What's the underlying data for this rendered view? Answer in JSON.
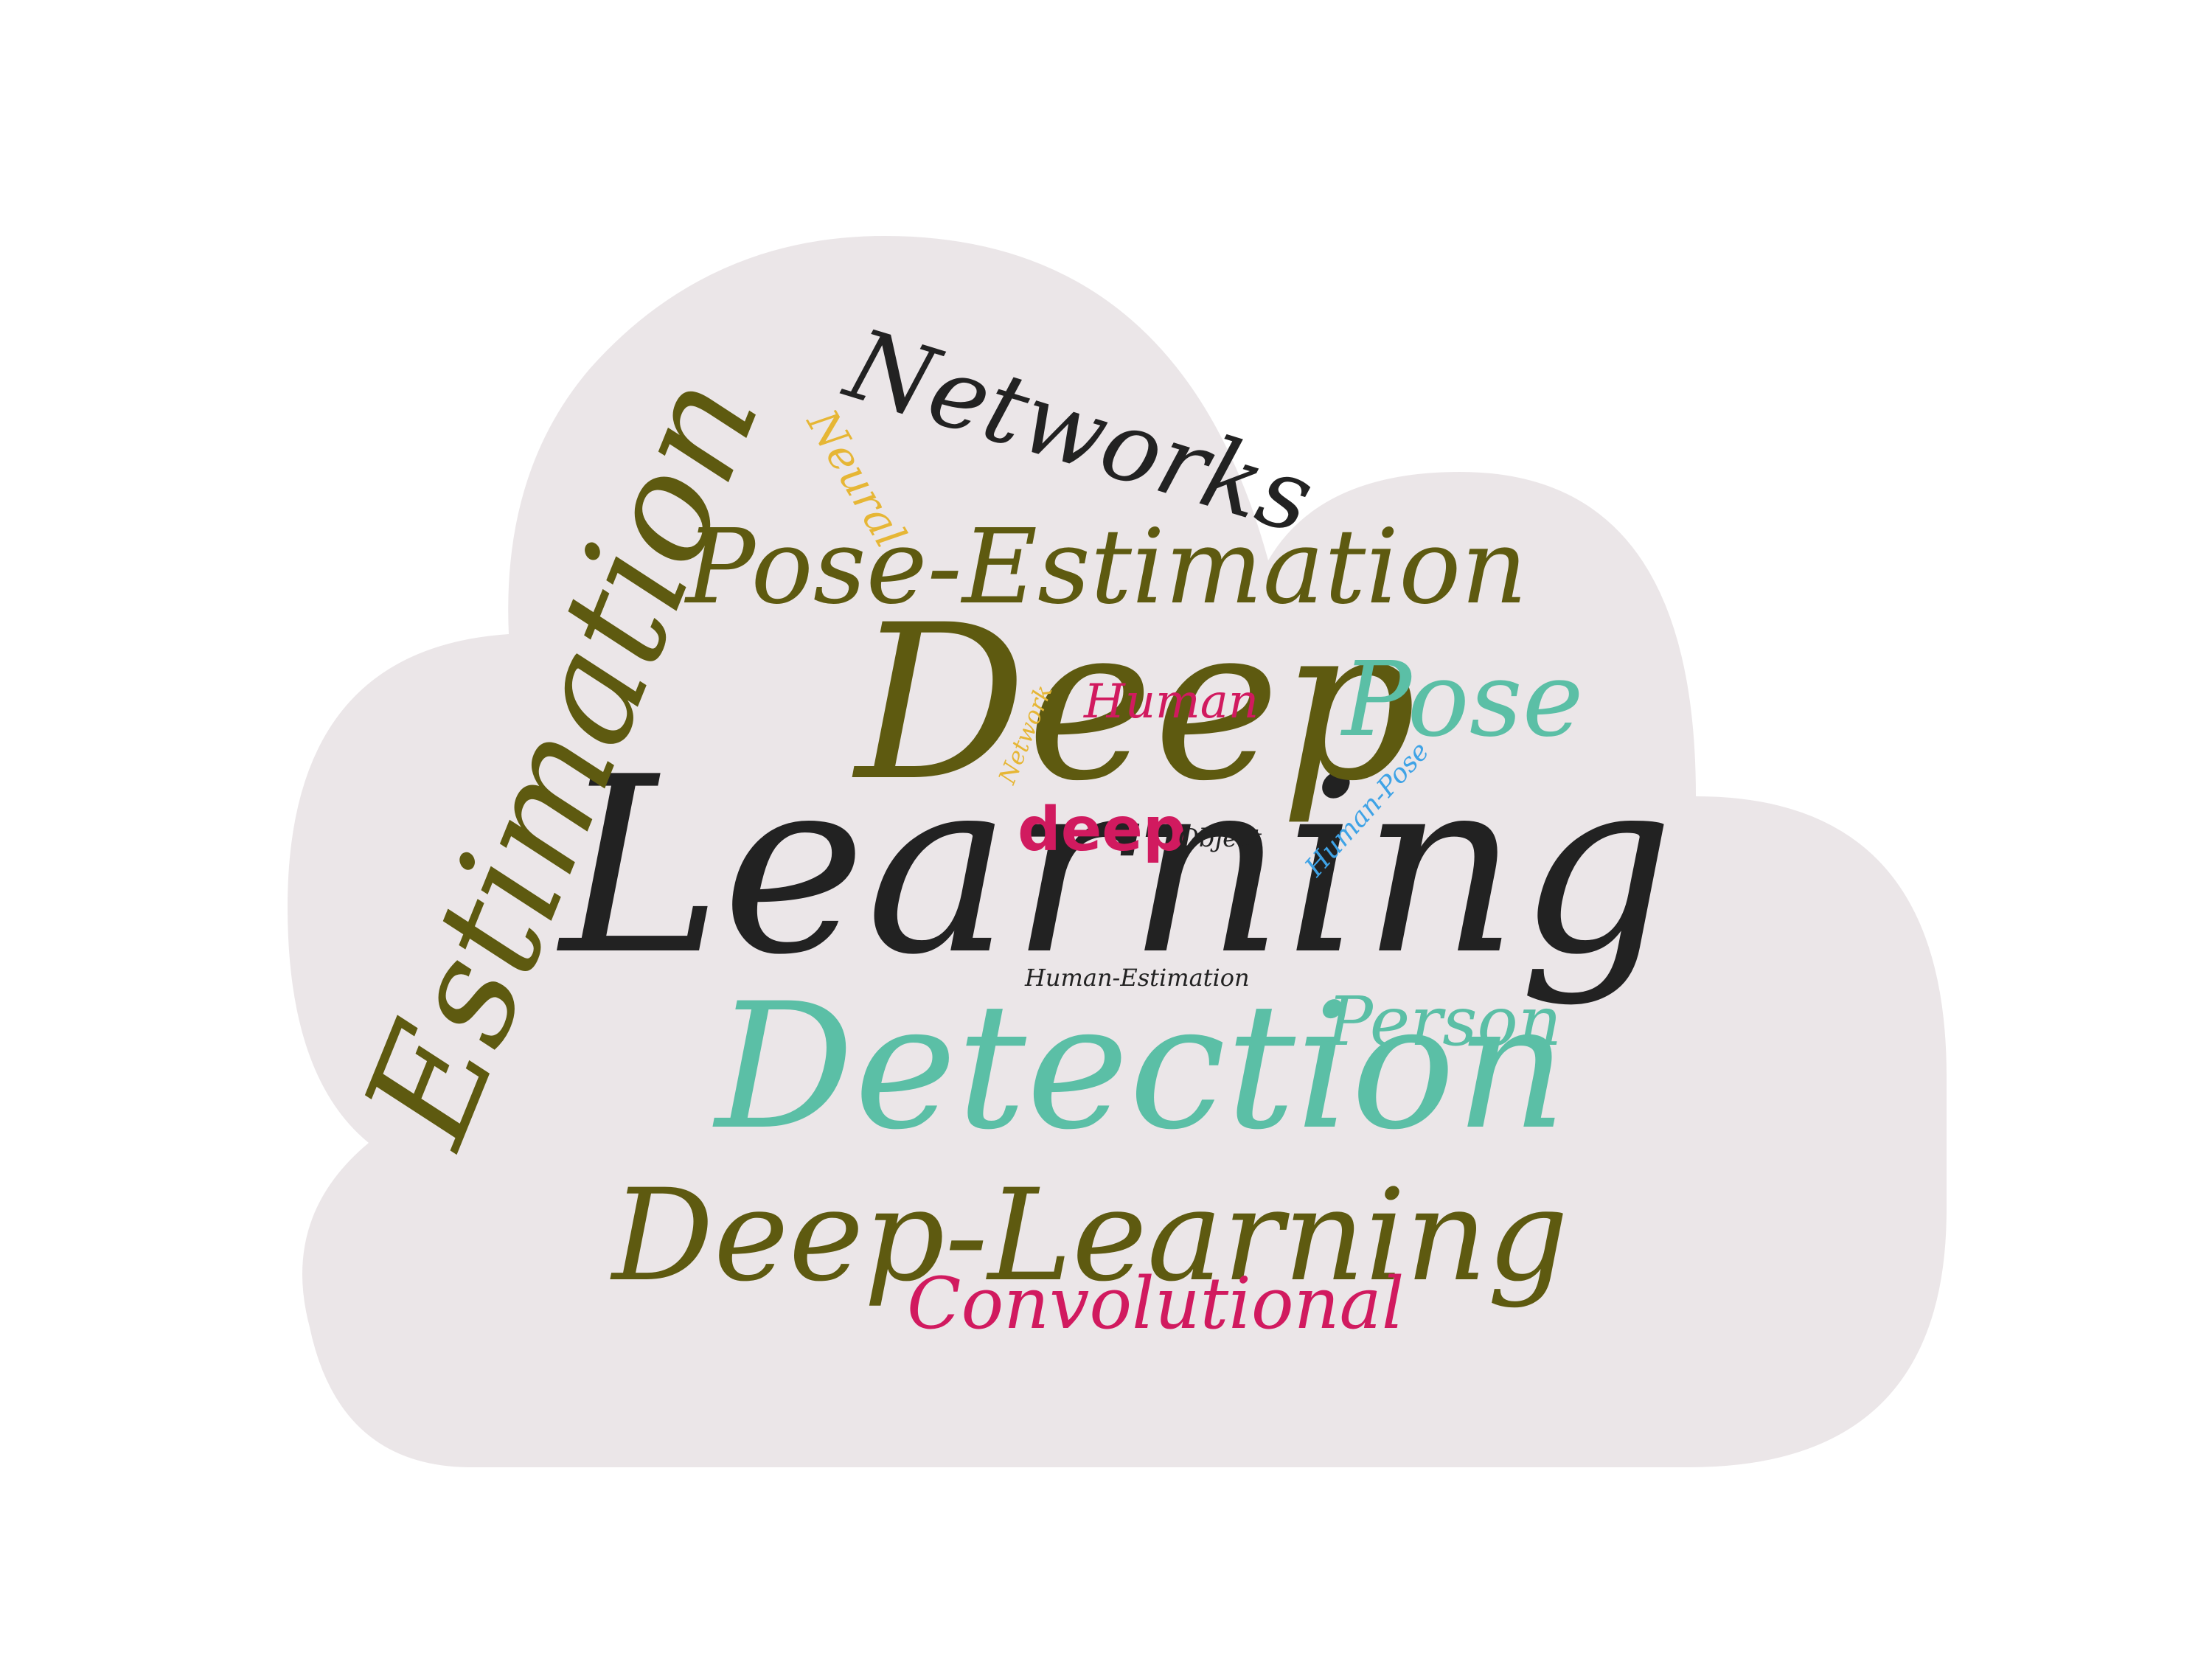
{
  "cloud_color": "#ebe6e8",
  "background_color": "#ffffff",
  "palette": {
    "olive": "#5e5a10",
    "black": "#222222",
    "teal": "#5bbfa6",
    "crimson": "#d11a5f",
    "gold": "#e6b635",
    "sky": "#3fa3e6"
  },
  "words": [
    {
      "id": "learning",
      "text": "Learning",
      "color": "#222222"
    },
    {
      "id": "deep",
      "text": "Deep",
      "color": "#5e5a10"
    },
    {
      "id": "detection",
      "text": "Detection",
      "color": "#5bbfa6"
    },
    {
      "id": "estimation",
      "text": "Estimation",
      "color": "#5e5a10"
    },
    {
      "id": "deep-learning",
      "text": "Deep-Learning",
      "color": "#5e5a10"
    },
    {
      "id": "pose-estimation",
      "text": "Pose-Estimation",
      "color": "#5e5a10"
    },
    {
      "id": "networks",
      "text": "Networks",
      "color": "#222222"
    },
    {
      "id": "pose",
      "text": "Pose",
      "color": "#5bbfa6"
    },
    {
      "id": "person",
      "text": "Person",
      "color": "#5bbfa6"
    },
    {
      "id": "convolutional",
      "text": "Convolutional",
      "color": "#d11a5f"
    },
    {
      "id": "human",
      "text": "Human",
      "color": "#d11a5f"
    },
    {
      "id": "deep-lower",
      "text": "deep",
      "color": "#d11a5f"
    },
    {
      "id": "neural",
      "text": "Neural",
      "color": "#e6b635"
    },
    {
      "id": "network",
      "text": "Network",
      "color": "#e6b635"
    },
    {
      "id": "object",
      "text": "Object",
      "color": "#222222"
    },
    {
      "id": "human-pose",
      "text": "Human-Pose",
      "color": "#3fa3e6"
    },
    {
      "id": "human-estimation",
      "text": "Human-Estimation",
      "color": "#222222"
    }
  ]
}
